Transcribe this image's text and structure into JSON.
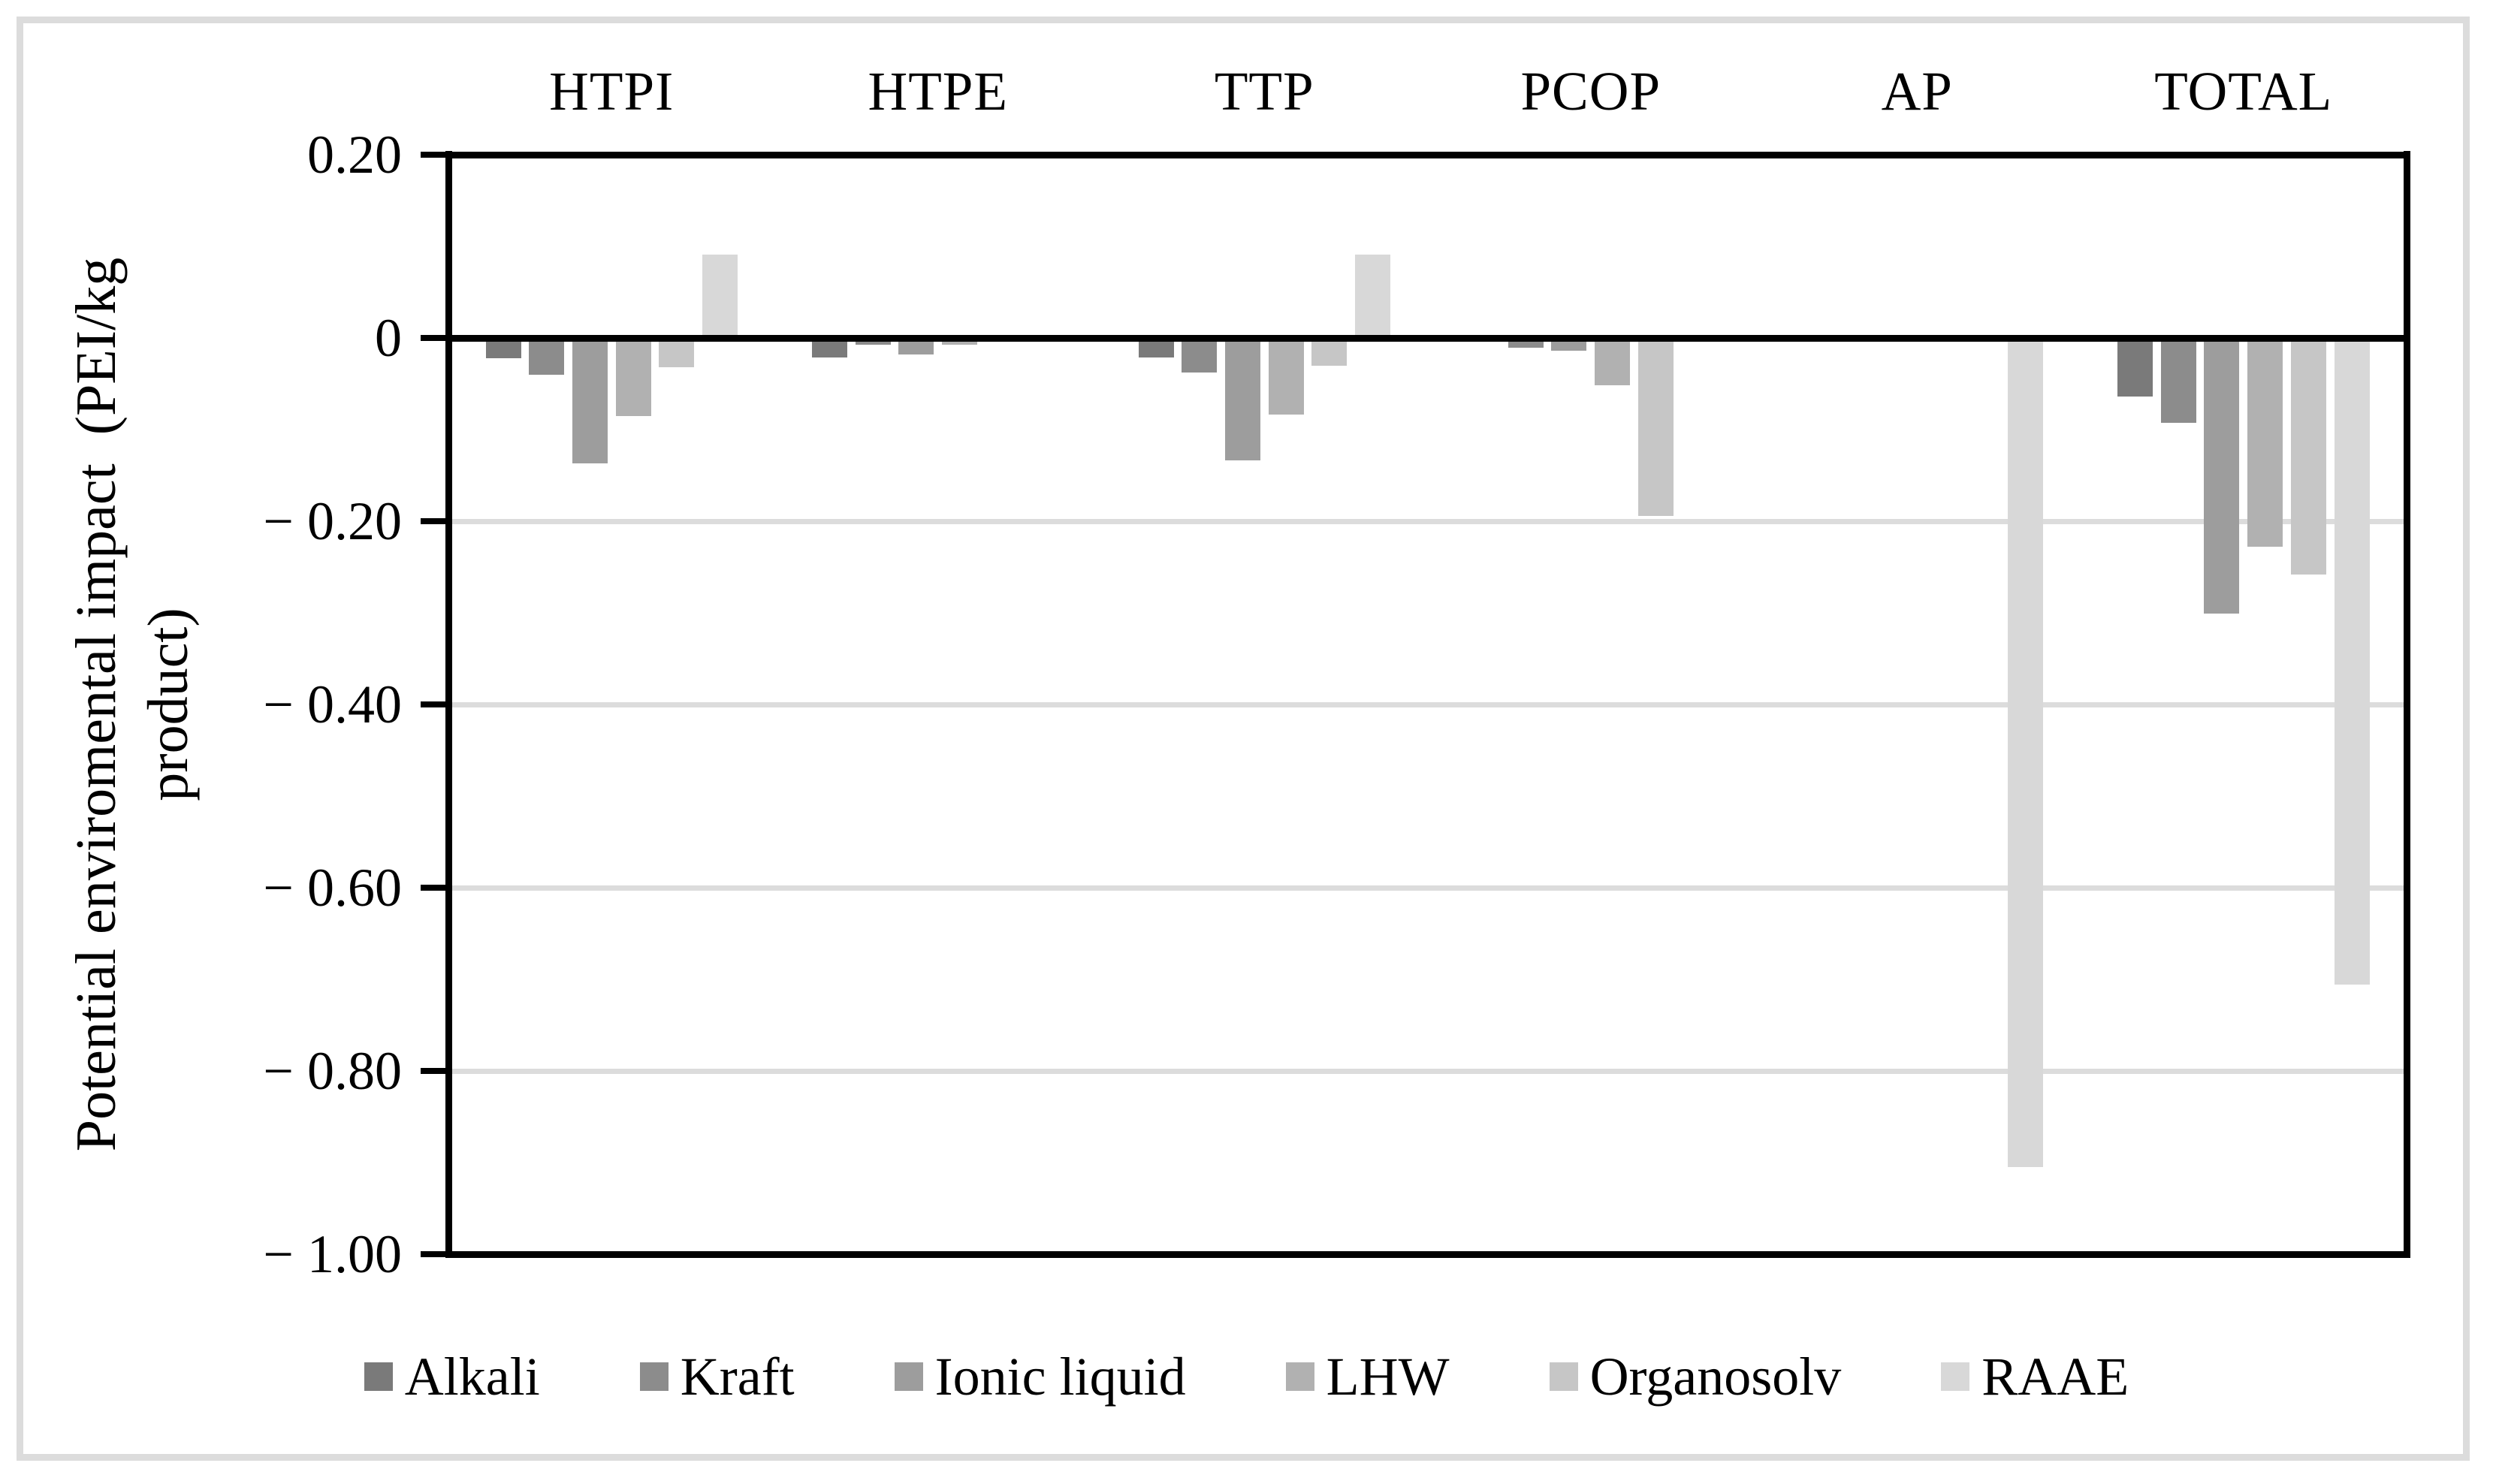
{
  "figure": {
    "background": "#ffffff",
    "border_color": "#dcdcdc"
  },
  "axis": {
    "y_title_line1": "Potential enviromental impact  (PEI/kg",
    "y_title_line2": "product)",
    "y_tick_labels": [
      "0.20",
      "0",
      "− 0.20",
      "− 0.40",
      "− 0.60",
      "− 0.80",
      "− 1.00"
    ],
    "grid_color": "#dcdcdc",
    "axis_color": "#000000"
  },
  "chart_data": {
    "type": "bar",
    "title": "",
    "xlabel": "",
    "ylabel": "Potential enviromental impact (PEI/kg product)",
    "ylim": [
      -1.0,
      0.2
    ],
    "y_tick_step": 0.2,
    "grid": "horizontal",
    "legend_position": "bottom",
    "categories": [
      "HTPI",
      "HTPE",
      "TTP",
      "PCOP",
      "AP",
      "TOTAL"
    ],
    "series": [
      {
        "name": "Alkali",
        "color": "#7a7a7a",
        "values": [
          -0.022,
          -0.021,
          -0.021,
          0.0,
          0.0,
          -0.064
        ]
      },
      {
        "name": "Kraft",
        "color": "#8c8c8c",
        "values": [
          -0.04,
          -0.007,
          -0.038,
          -0.011,
          0.0,
          -0.093
        ]
      },
      {
        "name": "Ionic liquid",
        "color": "#9d9d9d",
        "values": [
          -0.137,
          -0.018,
          -0.134,
          -0.014,
          0.0,
          -0.301
        ]
      },
      {
        "name": "LHW",
        "color": "#b1b1b1",
        "values": [
          -0.085,
          -0.007,
          -0.084,
          -0.052,
          0.0,
          -0.228
        ]
      },
      {
        "name": "Organosolv",
        "color": "#c6c6c6",
        "values": [
          -0.032,
          0.0,
          -0.03,
          -0.194,
          0.0,
          -0.258
        ]
      },
      {
        "name": "RAAE",
        "color": "#d8d8d8",
        "values": [
          0.091,
          -0.003,
          0.091,
          0.0,
          -0.905,
          -0.706
        ]
      }
    ]
  }
}
